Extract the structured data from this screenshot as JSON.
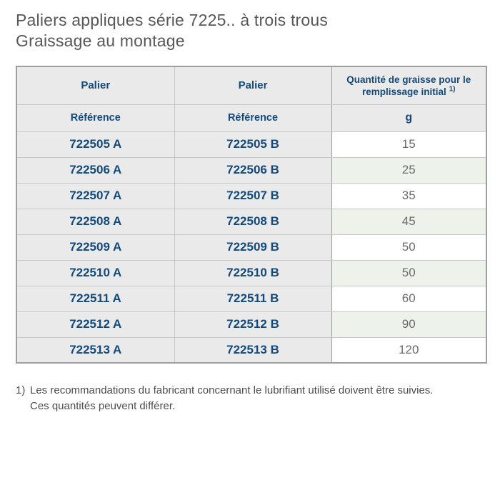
{
  "title": {
    "line1": "Paliers appliques série 7225.. à trois trous",
    "line2": "Graissage au montage"
  },
  "table": {
    "header": {
      "col1": "Palier",
      "col2": "Palier",
      "col3_text": "Quantité de graisse pour le remplissage initial",
      "col3_sup": "1)",
      "sub_col1": "Référence",
      "sub_col2": "Référence",
      "sub_col3": "g"
    },
    "rows": [
      {
        "ref_a": "722505 A",
        "ref_b": "722505 B",
        "grams": "15"
      },
      {
        "ref_a": "722506 A",
        "ref_b": "722506 B",
        "grams": "25"
      },
      {
        "ref_a": "722507 A",
        "ref_b": "722507 B",
        "grams": "35"
      },
      {
        "ref_a": "722508 A",
        "ref_b": "722508 B",
        "grams": "45"
      },
      {
        "ref_a": "722509 A",
        "ref_b": "722509 B",
        "grams": "50"
      },
      {
        "ref_a": "722510 A",
        "ref_b": "722510 B",
        "grams": "50"
      },
      {
        "ref_a": "722511 A",
        "ref_b": "722511 B",
        "grams": "60"
      },
      {
        "ref_a": "722512 A",
        "ref_b": "722512 B",
        "grams": "90"
      },
      {
        "ref_a": "722513 A",
        "ref_b": "722513 B",
        "grams": "120"
      }
    ]
  },
  "footnote": {
    "marker": "1)",
    "line1": "Les recommandations du fabricant concernant le lubrifiant utilisé doivent être suivies.",
    "line2": "Ces quantités peuvent différer."
  },
  "colors": {
    "heading_text": "#575757",
    "table_blue": "#134a7b",
    "cell_gray": "#eaeaea",
    "green_tint": "#edf3ea",
    "value_text": "#6b6b6b",
    "outer_border": "#9e9e9e"
  }
}
